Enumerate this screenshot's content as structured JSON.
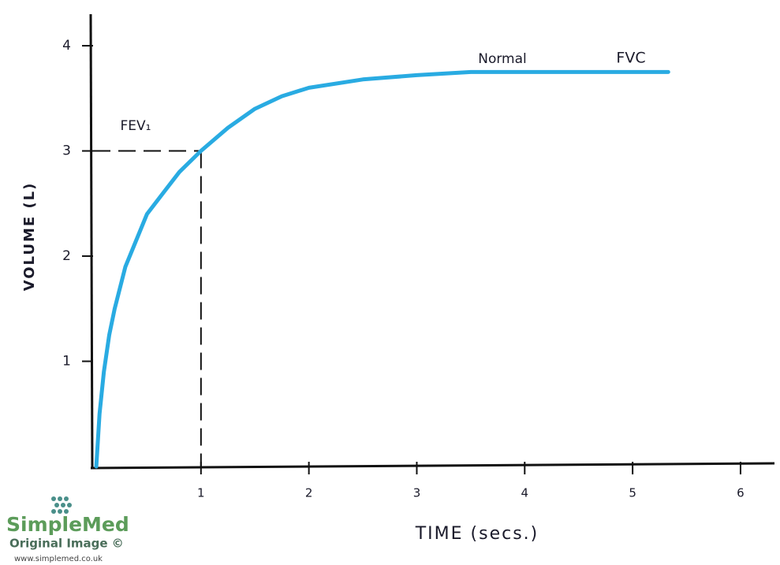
{
  "chart_data": {
    "type": "line",
    "x_label": "TIME (secs.)",
    "y_label": "VOLUME (L)",
    "annotations": [
      "Normal",
      "FVC",
      "FEV₁"
    ],
    "series": [
      {
        "color": "#29abe2",
        "x": [
          0.03,
          0.06,
          0.1,
          0.15,
          0.2,
          0.3,
          0.4,
          0.5,
          0.65,
          0.8,
          1,
          1.25,
          1.5,
          1.75,
          2,
          2.5,
          3,
          3.5,
          4,
          4.5,
          5,
          5.33
        ],
        "values": [
          0,
          0.5,
          0.9,
          1.25,
          1.5,
          1.9,
          2.15,
          2.4,
          2.6,
          2.8,
          3.0,
          3.22,
          3.4,
          3.52,
          3.6,
          3.68,
          3.72,
          3.75,
          3.75,
          3.75,
          3.75,
          3.75
        ]
      }
    ],
    "reference": {
      "x": 1,
      "y": 3
    },
    "xlim": [
      0,
      6.3
    ],
    "ylim": [
      0,
      4.3
    ],
    "xticks": [
      1,
      2,
      3,
      4,
      5,
      6
    ],
    "yticks": [
      1,
      2,
      3,
      4
    ],
    "grid": false
  },
  "watermark": {
    "brand": "SimpleMed",
    "note": "Original Image ©",
    "url": "www.simplemed.co.uk"
  }
}
